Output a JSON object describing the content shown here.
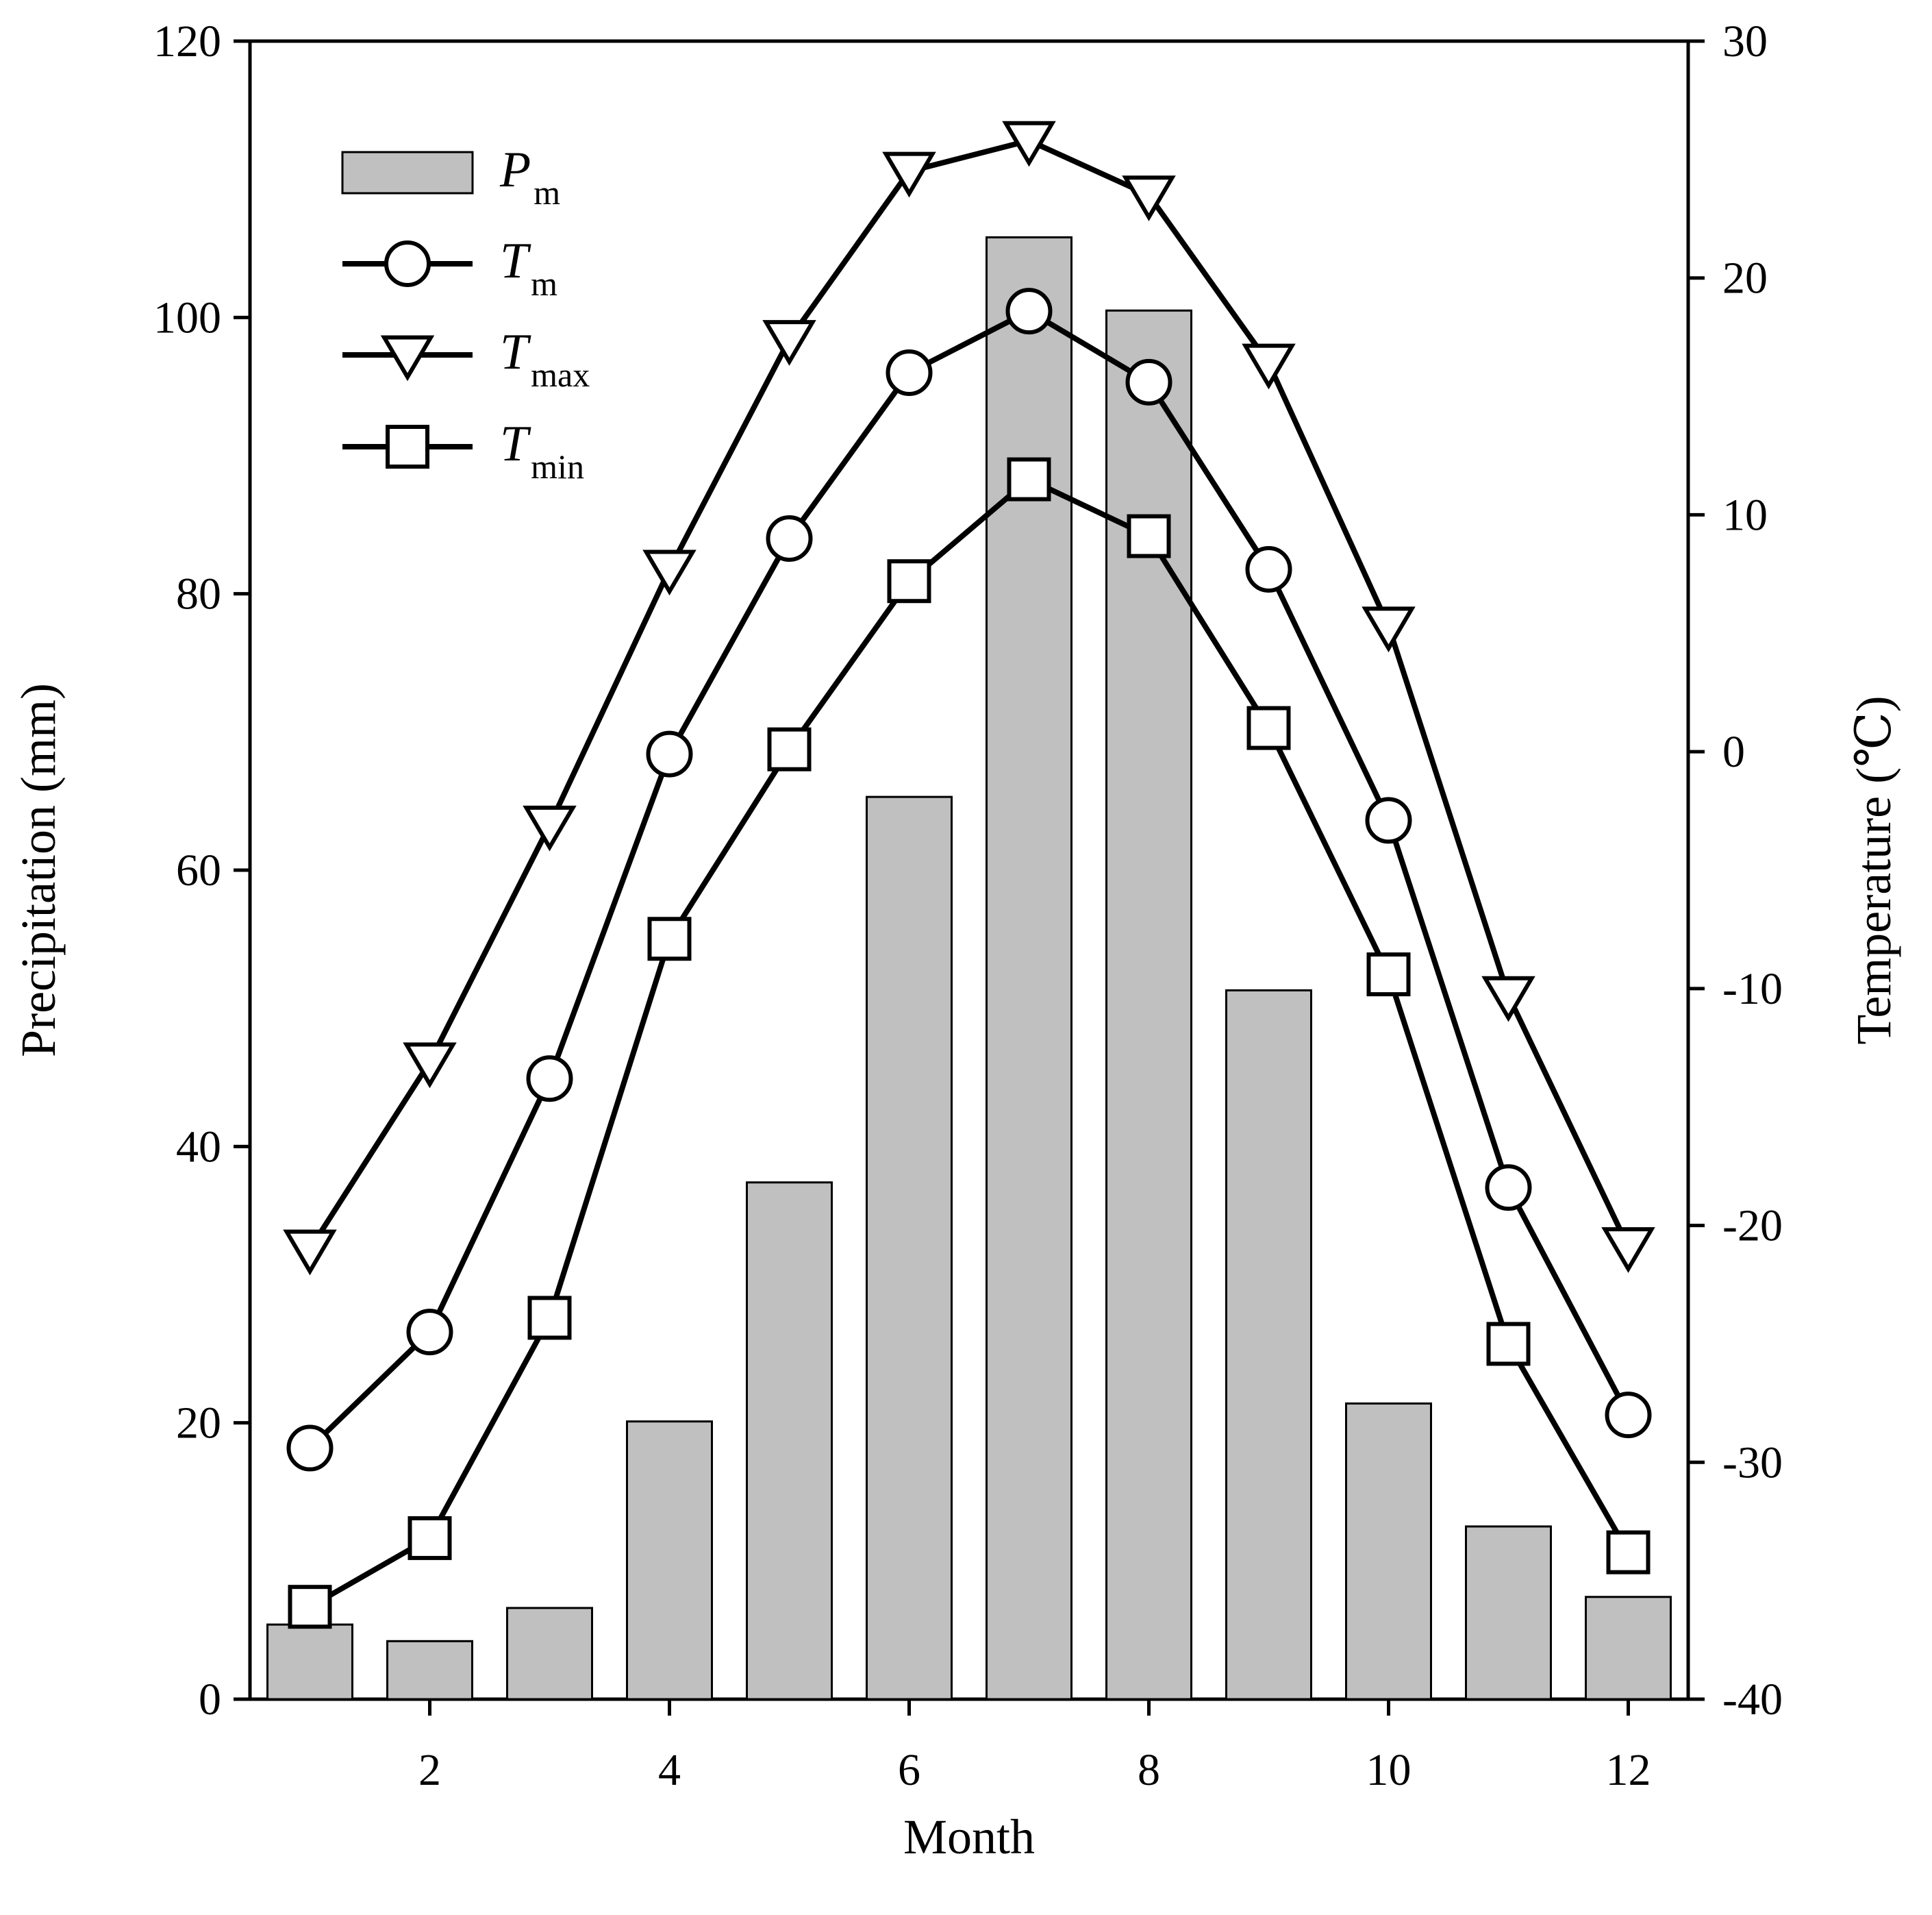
{
  "chart_data": {
    "type": "bar+line",
    "xlabel": "Month",
    "ylabel_left": "Precipitation (mm)",
    "ylabel_right": "Temperature (℃)",
    "xlim": [
      0.5,
      12.5
    ],
    "ylim_left": [
      0,
      120
    ],
    "ylim_right": [
      -40,
      30
    ],
    "x_ticks": [
      2,
      4,
      6,
      8,
      10,
      12
    ],
    "y_left_ticks": [
      0,
      20,
      40,
      60,
      80,
      100,
      120
    ],
    "y_right_ticks": [
      -40,
      -30,
      -20,
      -10,
      0,
      10,
      20,
      30
    ],
    "grid": false,
    "legend_position": "top-left",
    "months": [
      1,
      2,
      3,
      4,
      5,
      6,
      7,
      8,
      9,
      10,
      11,
      12
    ],
    "bars": {
      "name": "Pm",
      "legend_main": "P",
      "legend_sub": "m",
      "axis": "left",
      "color": "#c0c0c0",
      "values": [
        5.4,
        4.2,
        6.6,
        20.1,
        37.4,
        65.3,
        105.8,
        100.5,
        51.3,
        21.4,
        12.5,
        7.4
      ]
    },
    "series": [
      {
        "name": "Tm",
        "legend_main": "T",
        "legend_sub": "m",
        "axis": "right",
        "marker": "circle",
        "values": [
          -29.4,
          -24.5,
          -13.8,
          -0.1,
          9.0,
          16.0,
          18.6,
          15.6,
          7.7,
          -2.9,
          -18.4,
          -28.0
        ]
      },
      {
        "name": "Tmax",
        "legend_main": "T",
        "legend_sub": "max",
        "axis": "right",
        "marker": "triangle-down",
        "values": [
          -21.0,
          -13.1,
          -3.1,
          7.7,
          17.4,
          24.5,
          25.8,
          23.5,
          16.4,
          5.3,
          -10.3,
          -20.9
        ]
      },
      {
        "name": "Tmin",
        "legend_main": "T",
        "legend_sub": "min",
        "axis": "right",
        "marker": "square",
        "values": [
          -36.1,
          -33.2,
          -23.9,
          -7.9,
          0.1,
          7.2,
          11.5,
          9.1,
          1.0,
          -9.4,
          -25.0,
          -33.8
        ]
      }
    ]
  }
}
